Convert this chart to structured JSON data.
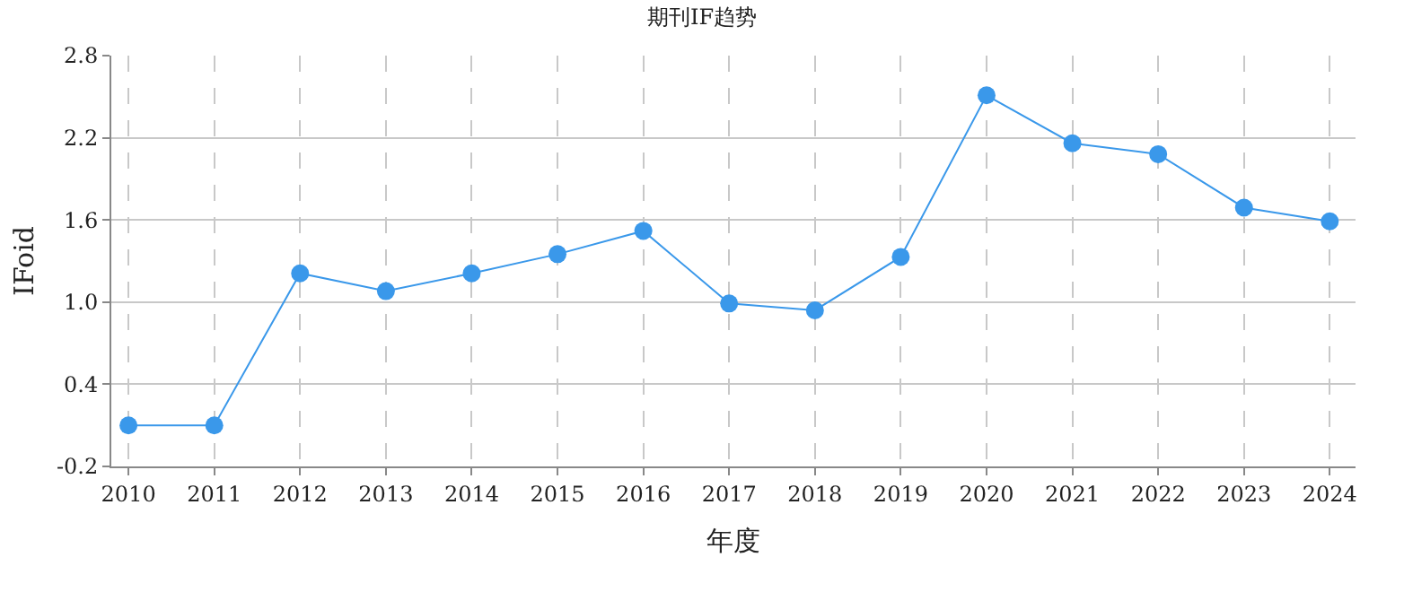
{
  "chart_data": {
    "type": "line",
    "title": "期刊IF趋势",
    "xlabel": "年度",
    "ylabel": "IFoid",
    "categories": [
      "2010",
      "2011",
      "2012",
      "2013",
      "2014",
      "2015",
      "2016",
      "2017",
      "2018",
      "2019",
      "2020",
      "2021",
      "2022",
      "2023",
      "2024"
    ],
    "series": [
      {
        "color": "#3a98ea",
        "values": [
          0.1,
          0.1,
          1.21,
          1.08,
          1.21,
          1.35,
          1.52,
          0.99,
          0.94,
          1.33,
          2.51,
          2.16,
          2.08,
          1.69,
          1.59
        ]
      }
    ],
    "ylim": [
      -0.2,
      2.8
    ],
    "yticks": [
      -0.2,
      0.4,
      {
        "value": 1,
        "label": "1.0"
      },
      1.6,
      2.2,
      2.8
    ],
    "grid": true,
    "marker": "circle",
    "line_style": "solid"
  }
}
